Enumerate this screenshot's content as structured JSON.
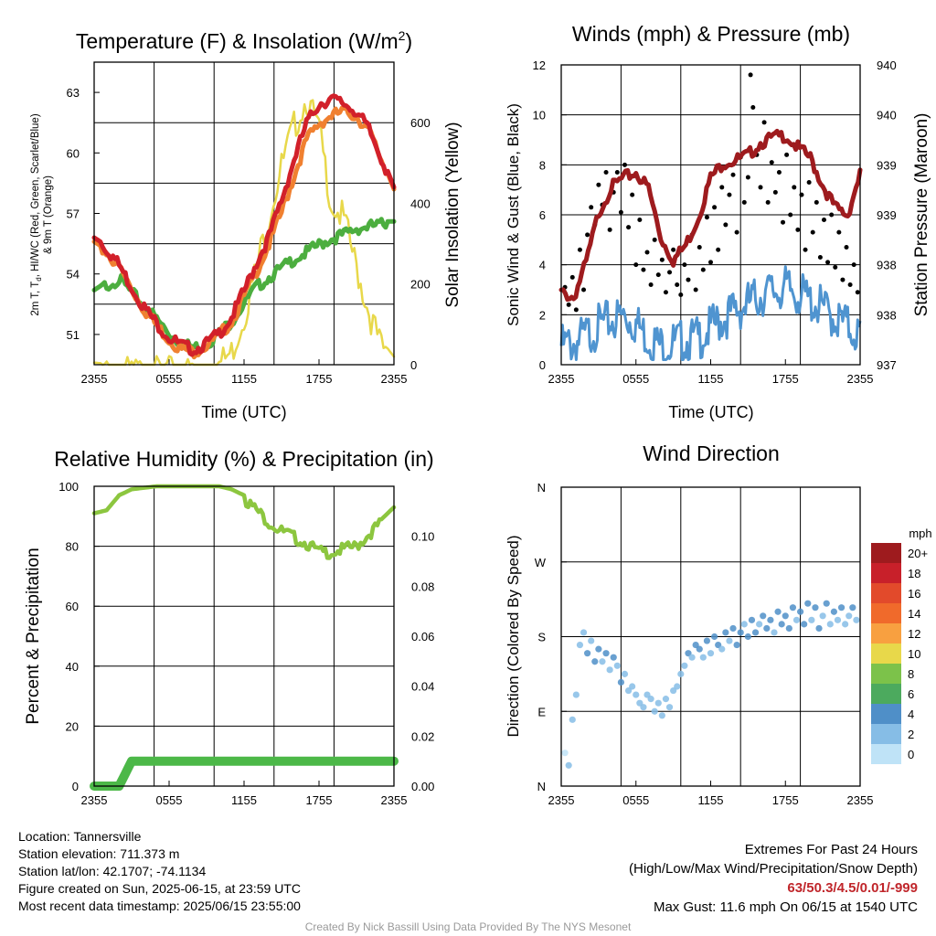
{
  "chart_data": [
    {
      "id": "temperature",
      "type": "line",
      "title": "Temperature (F) & Insolation (W/m²)",
      "xlabel": "Time (UTC)",
      "ylabel": "2m T, Td, HI/WC (Red, Green, Scarlet/Blue) & 9m T (Orange)",
      "ylabel_right": "Solar Insolation (Yellow)",
      "x_ticks": [
        "2355",
        "0555",
        "1155",
        "1755",
        "2355"
      ],
      "y_ticks": [
        51,
        54,
        57,
        60,
        63
      ],
      "ylim": [
        49.5,
        64.5
      ],
      "y2_ticks": [
        0,
        200,
        400,
        600
      ],
      "y2lim": [
        0,
        750
      ],
      "x": [
        0,
        1,
        2,
        3,
        4,
        5,
        6,
        7,
        8,
        9,
        10,
        11,
        12,
        13,
        14,
        15,
        16,
        17,
        18,
        19,
        20,
        21,
        22,
        23,
        24
      ],
      "series": [
        {
          "color": "#e8d84a",
          "axis": "right",
          "values": [
            5,
            3,
            2,
            2,
            2,
            2,
            2,
            2,
            2,
            3,
            20,
            50,
            140,
            260,
            390,
            510,
            610,
            680,
            600,
            420,
            380,
            260,
            150,
            60,
            20
          ]
        },
        {
          "color": "#4cae3f",
          "axis": "left",
          "values": [
            53.2,
            53.6,
            53.9,
            53.2,
            52.6,
            51.9,
            51.2,
            50.7,
            50.5,
            50.7,
            51.2,
            51.8,
            52.7,
            53.5,
            54.0,
            54.4,
            54.9,
            55.2,
            55.6,
            55.9,
            56.1,
            56.4,
            56.5,
            56.6,
            56.6
          ]
        },
        {
          "color": "#f08030",
          "axis": "left",
          "values": [
            55.6,
            55.2,
            54.5,
            53.4,
            52.4,
            51.6,
            50.9,
            50.4,
            50.3,
            50.6,
            51.1,
            51.8,
            53.0,
            54.3,
            55.6,
            57.2,
            59.0,
            60.8,
            61.6,
            62.0,
            62.2,
            62.0,
            61.2,
            59.8,
            58.2
          ]
        },
        {
          "color": "#d2202a",
          "axis": "left",
          "values": [
            55.8,
            55.4,
            54.6,
            53.5,
            52.5,
            51.7,
            51.0,
            50.6,
            50.4,
            50.7,
            51.2,
            52.0,
            53.3,
            54.7,
            56.0,
            57.8,
            59.8,
            61.6,
            62.6,
            62.8,
            62.6,
            62.2,
            61.3,
            59.9,
            58.3
          ]
        }
      ]
    },
    {
      "id": "winds",
      "type": "line",
      "title": "Winds (mph) & Pressure (mb)",
      "xlabel": "Time (UTC)",
      "ylabel": "Sonic Wind & Gust (Blue, Black)",
      "ylabel_right": "Station Pressure (Maroon)",
      "x_ticks": [
        "2355",
        "0555",
        "1155",
        "1755",
        "2355"
      ],
      "y_ticks": [
        0,
        2,
        4,
        6,
        8,
        10,
        12
      ],
      "ylim": [
        0,
        12
      ],
      "y2_ticks": [
        "937",
        "938",
        "938",
        "939",
        "939",
        "940",
        "940"
      ],
      "x": [
        0,
        1,
        2,
        3,
        4,
        5,
        6,
        7,
        8,
        9,
        10,
        11,
        12,
        13,
        14,
        15,
        16,
        17,
        18,
        19,
        20,
        21,
        22,
        23,
        24
      ],
      "series": [
        {
          "color": "#4f94d0",
          "axis": "left",
          "values": [
            1.2,
            1.3,
            1.6,
            2.0,
            2.2,
            2.4,
            2.1,
            1.5,
            1.2,
            1.3,
            1.4,
            1.5,
            1.9,
            2.3,
            2.6,
            2.9,
            3.2,
            3.4,
            3.5,
            3.3,
            3.0,
            2.7,
            2.3,
            2.0,
            1.6
          ]
        },
        {
          "color": "#9e1b1e",
          "axis": "right",
          "values": [
            3.0,
            2.8,
            4.2,
            6.2,
            7.2,
            7.6,
            7.8,
            7.2,
            5.2,
            4.3,
            4.9,
            6.0,
            7.6,
            8.2,
            8.3,
            8.5,
            9.0,
            9.2,
            9.3,
            8.8,
            8.4,
            7.3,
            6.4,
            6.1,
            7.8
          ]
        }
      ],
      "gust_points": [
        [
          0.3,
          3.1
        ],
        [
          0.6,
          2.4
        ],
        [
          0.9,
          3.5
        ],
        [
          1.2,
          2.2
        ],
        [
          1.5,
          4.6
        ],
        [
          1.8,
          3.0
        ],
        [
          2.1,
          5.2
        ],
        [
          2.4,
          6.3
        ],
        [
          2.7,
          5.6
        ],
        [
          3.0,
          7.2
        ],
        [
          3.3,
          6.4
        ],
        [
          3.6,
          7.7
        ],
        [
          3.9,
          5.4
        ],
        [
          4.2,
          6.9
        ],
        [
          4.5,
          7.7
        ],
        [
          4.8,
          6.1
        ],
        [
          5.1,
          8.0
        ],
        [
          5.4,
          5.5
        ],
        [
          5.7,
          6.8
        ],
        [
          6.0,
          4.0
        ],
        [
          6.3,
          5.8
        ],
        [
          6.6,
          3.8
        ],
        [
          6.9,
          4.5
        ],
        [
          7.2,
          3.2
        ],
        [
          7.5,
          5.0
        ],
        [
          7.8,
          3.6
        ],
        [
          8.1,
          4.2
        ],
        [
          8.4,
          2.9
        ],
        [
          8.7,
          3.7
        ],
        [
          9.0,
          4.6
        ],
        [
          9.3,
          3.2
        ],
        [
          9.6,
          2.8
        ],
        [
          9.9,
          4.0
        ],
        [
          10.2,
          3.4
        ],
        [
          10.5,
          5.2
        ],
        [
          10.8,
          3.0
        ],
        [
          11.1,
          4.7
        ],
        [
          11.4,
          3.8
        ],
        [
          11.7,
          5.9
        ],
        [
          12.0,
          4.1
        ],
        [
          12.3,
          6.3
        ],
        [
          12.6,
          4.6
        ],
        [
          12.9,
          7.1
        ],
        [
          13.2,
          5.6
        ],
        [
          13.5,
          6.8
        ],
        [
          13.8,
          7.6
        ],
        [
          14.1,
          5.3
        ],
        [
          14.4,
          8.3
        ],
        [
          14.7,
          6.5
        ],
        [
          15.0,
          7.5
        ],
        [
          15.2,
          11.6
        ],
        [
          15.4,
          10.3
        ],
        [
          15.7,
          8.4
        ],
        [
          16.0,
          7.1
        ],
        [
          16.3,
          9.7
        ],
        [
          16.6,
          6.5
        ],
        [
          16.9,
          8.1
        ],
        [
          17.2,
          6.9
        ],
        [
          17.5,
          7.7
        ],
        [
          17.8,
          5.7
        ],
        [
          18.1,
          8.4
        ],
        [
          18.4,
          6.0
        ],
        [
          18.7,
          7.1
        ],
        [
          19.0,
          5.4
        ],
        [
          19.3,
          6.8
        ],
        [
          19.6,
          4.6
        ],
        [
          19.9,
          7.3
        ],
        [
          20.2,
          5.3
        ],
        [
          20.5,
          6.5
        ],
        [
          20.8,
          4.3
        ],
        [
          21.1,
          5.8
        ],
        [
          21.4,
          4.1
        ],
        [
          21.7,
          6.0
        ],
        [
          22.0,
          3.9
        ],
        [
          22.3,
          5.3
        ],
        [
          22.6,
          3.4
        ],
        [
          22.9,
          4.7
        ],
        [
          23.2,
          3.2
        ],
        [
          23.5,
          4.0
        ],
        [
          23.8,
          2.9
        ]
      ]
    },
    {
      "id": "humidity",
      "type": "line",
      "title": "Relative Humidity (%) & Precipitation (in)",
      "xlabel": "",
      "ylabel": "Percent & Precipitation",
      "x_ticks": [
        "2355",
        "0555",
        "1155",
        "1755",
        "2355"
      ],
      "y_ticks": [
        0,
        20,
        40,
        60,
        80,
        100
      ],
      "ylim": [
        0,
        100
      ],
      "y2_ticks": [
        "0.00",
        "0.02",
        "0.04",
        "0.06",
        "0.08",
        "0.10"
      ],
      "y2lim": [
        0,
        0.12
      ],
      "x": [
        0,
        1,
        2,
        3,
        4,
        5,
        6,
        7,
        8,
        9,
        10,
        11,
        12,
        13,
        14,
        15,
        16,
        17,
        18,
        19,
        20,
        21,
        22,
        23,
        24
      ],
      "series": [
        {
          "color": "#8cc63f",
          "axis": "left",
          "values": [
            91,
            92,
            97,
            99,
            99.5,
            100,
            100,
            100,
            100,
            100,
            100,
            99,
            97,
            93,
            89,
            86,
            84,
            82,
            79,
            79,
            80,
            81,
            85,
            89,
            93
          ]
        },
        {
          "color": "#4cb848",
          "axis": "right",
          "values": [
            0,
            0,
            0,
            0.01,
            0.01,
            0.01,
            0.01,
            0.01,
            0.01,
            0.01,
            0.01,
            0.01,
            0.01,
            0.01,
            0.01,
            0.01,
            0.01,
            0.01,
            0.01,
            0.01,
            0.01,
            0.01,
            0.01,
            0.01,
            0.01
          ]
        }
      ]
    },
    {
      "id": "direction",
      "type": "scatter",
      "title": "Wind Direction",
      "xlabel": "",
      "ylabel": "Direction (Colored By Speed)",
      "x_ticks": [
        "2355",
        "0555",
        "1155",
        "1755",
        "2355"
      ],
      "y_ticks": [
        "N",
        "E",
        "S",
        "W",
        "N"
      ],
      "ylim": [
        0,
        360
      ],
      "colorbar_title": "mph",
      "colorbar_labels": [
        "20+",
        "18",
        "16",
        "14",
        "12",
        "10",
        "8",
        "6",
        "4",
        "2",
        "0"
      ],
      "colorbar_colors": [
        "#9e1b1e",
        "#c8202a",
        "#e24a2b",
        "#f06a2b",
        "#f8a040",
        "#e8d84a",
        "#7cc24a",
        "#4caa5e",
        "#4f8fc8",
        "#86bde6",
        "#bfe3f7"
      ],
      "points": [
        [
          0.3,
          40,
          0.5
        ],
        [
          0.6,
          25,
          1
        ],
        [
          0.9,
          80,
          1.5
        ],
        [
          1.2,
          110,
          1
        ],
        [
          1.5,
          170,
          2.5
        ],
        [
          1.8,
          185,
          2
        ],
        [
          2.1,
          160,
          3
        ],
        [
          2.4,
          175,
          2.5
        ],
        [
          2.7,
          150,
          3
        ],
        [
          3.0,
          165,
          3.5
        ],
        [
          3.3,
          150,
          2.5
        ],
        [
          3.6,
          160,
          3
        ],
        [
          3.9,
          140,
          2
        ],
        [
          4.2,
          155,
          3
        ],
        [
          4.5,
          145,
          2.5
        ],
        [
          4.8,
          125,
          3
        ],
        [
          5.1,
          135,
          2
        ],
        [
          5.4,
          115,
          2.5
        ],
        [
          5.7,
          120,
          1.5
        ],
        [
          6.0,
          110,
          2
        ],
        [
          6.3,
          100,
          1.5
        ],
        [
          6.6,
          95,
          1
        ],
        [
          6.9,
          110,
          1.5
        ],
        [
          7.2,
          105,
          1
        ],
        [
          7.5,
          90,
          1
        ],
        [
          7.8,
          100,
          1.5
        ],
        [
          8.1,
          85,
          1
        ],
        [
          8.4,
          105,
          1.5
        ],
        [
          8.7,
          95,
          1
        ],
        [
          9.0,
          115,
          1.5
        ],
        [
          9.3,
          120,
          2
        ],
        [
          9.6,
          135,
          2.5
        ],
        [
          9.9,
          145,
          2
        ],
        [
          10.2,
          160,
          3
        ],
        [
          10.5,
          155,
          2.5
        ],
        [
          10.8,
          170,
          3
        ],
        [
          11.1,
          165,
          3.5
        ],
        [
          11.4,
          155,
          2
        ],
        [
          11.7,
          175,
          3
        ],
        [
          12.0,
          160,
          2.5
        ],
        [
          12.3,
          180,
          3
        ],
        [
          12.6,
          170,
          3.5
        ],
        [
          12.9,
          165,
          2
        ],
        [
          13.2,
          185,
          3
        ],
        [
          13.5,
          175,
          2.5
        ],
        [
          13.8,
          190,
          3
        ],
        [
          14.1,
          170,
          3.5
        ],
        [
          14.4,
          185,
          3
        ],
        [
          14.7,
          195,
          2.5
        ],
        [
          15.0,
          180,
          4
        ],
        [
          15.3,
          200,
          3
        ],
        [
          15.6,
          185,
          3.5
        ],
        [
          15.9,
          195,
          2.5
        ],
        [
          16.2,
          205,
          3
        ],
        [
          16.5,
          190,
          3.5
        ],
        [
          16.8,
          200,
          4
        ],
        [
          17.1,
          185,
          2.5
        ],
        [
          17.4,
          210,
          3
        ],
        [
          17.7,
          195,
          3.5
        ],
        [
          18.0,
          205,
          4
        ],
        [
          18.3,
          190,
          3
        ],
        [
          18.6,
          215,
          3.5
        ],
        [
          18.9,
          200,
          2.5
        ],
        [
          19.2,
          210,
          3
        ],
        [
          19.5,
          195,
          3.5
        ],
        [
          19.8,
          220,
          3
        ],
        [
          20.1,
          200,
          2.5
        ],
        [
          20.4,
          215,
          3
        ],
        [
          20.7,
          190,
          3.5
        ],
        [
          21.0,
          205,
          2.5
        ],
        [
          21.3,
          220,
          3
        ],
        [
          21.6,
          195,
          2.5
        ],
        [
          21.9,
          210,
          3
        ],
        [
          22.2,
          200,
          2.5
        ],
        [
          22.5,
          215,
          3
        ],
        [
          22.8,
          195,
          2
        ],
        [
          23.1,
          205,
          2.5
        ],
        [
          23.4,
          215,
          3
        ],
        [
          23.7,
          200,
          2
        ]
      ]
    }
  ],
  "chart_titles": [
    "Temperature (F) & Insolation (W/m",
    "Winds (mph) & Pressure (mb)",
    "Relative Humidity (%) & Precipitation (in)",
    "Wind Direction"
  ],
  "superscript_two": "2",
  "info": {
    "location": "Location: Tannersville",
    "elevation": "Station elevation: 711.373 m",
    "latlon": "Station lat/lon: 42.1707; -74.1134",
    "created": "Figure created on Sun, 2025-06-15, at 23:59 UTC",
    "recent": "Most recent data timestamp: 2025/06/15 23:55:00"
  },
  "extremes": {
    "heading": "Extremes For Past 24 Hours",
    "sub": "(High/Low/Max Wind/Precipitation/Snow Depth)",
    "values": "63/50.3/4.5/0.01/-999",
    "max_gust": "Max Gust: 11.6 mph On 06/15 at 1540 UTC"
  },
  "credit": "Created By Nick Bassill Using Data Provided By The NYS Mesonet",
  "dewpoint_label": "2m T, T",
  "dewpoint_sub": "d",
  "temp_ylabel_rest": ", HI/WC (Red, Green, Scarlet/Blue)",
  "temp_ylabel_line2": "& 9m T (Orange)",
  "time_label": "Time (UTC)"
}
